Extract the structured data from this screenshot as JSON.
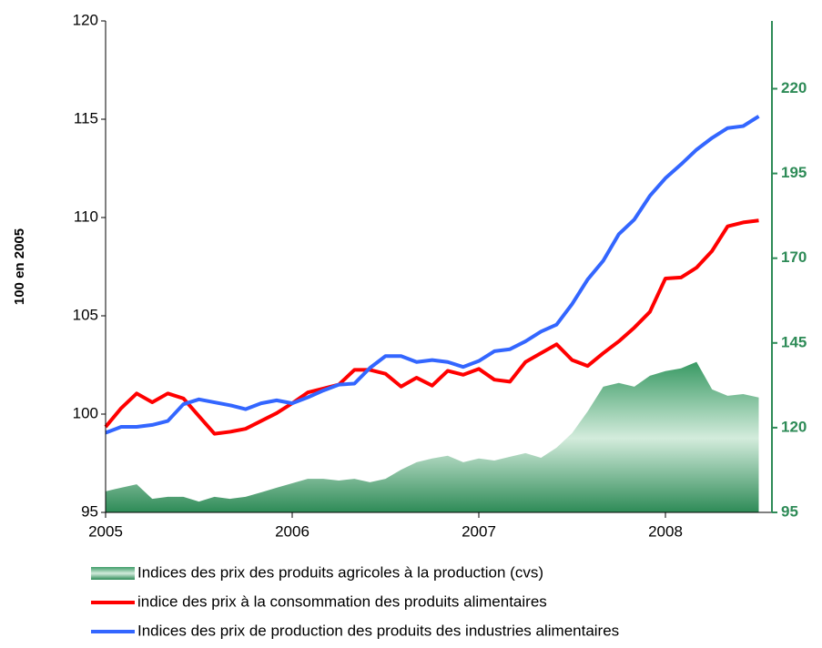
{
  "chart_data": {
    "type": "line",
    "y_label": "100 en 2005",
    "categories": [
      "2005",
      null,
      null,
      null,
      null,
      null,
      null,
      null,
      null,
      null,
      null,
      null,
      "2006",
      null,
      null,
      null,
      null,
      null,
      null,
      null,
      null,
      null,
      null,
      null,
      "2007",
      null,
      null,
      null,
      null,
      null,
      null,
      null,
      null,
      null,
      null,
      null,
      "2008",
      null,
      null,
      null,
      null,
      null,
      null
    ],
    "ylim": [
      95,
      120
    ],
    "yticks": [
      95,
      100,
      105,
      110,
      115,
      120
    ],
    "y2lim": [
      95,
      240
    ],
    "y2ticks": [
      95,
      120,
      145,
      170,
      195,
      220
    ],
    "y2_color": "#2e8b57",
    "legend": "bottom",
    "series": [
      {
        "name": "Indices des prix des produits agricoles à la production (cvs)",
        "type": "area",
        "axis": "y2",
        "color": "#2e8b57",
        "values": [
          101.2,
          102.3,
          103.3,
          99.0,
          99.6,
          99.6,
          98.2,
          99.6,
          99.0,
          99.6,
          100.9,
          102.3,
          103.6,
          104.9,
          104.9,
          104.4,
          104.9,
          103.9,
          104.9,
          107.6,
          109.8,
          110.9,
          111.7,
          109.8,
          110.9,
          110.3,
          111.4,
          112.5,
          111.1,
          114.1,
          118.4,
          124.8,
          132.1,
          133.2,
          132.1,
          135.3,
          136.7,
          137.5,
          139.4,
          131.3,
          129.4,
          129.9,
          128.9
        ]
      },
      {
        "name": "indice des prix à la consommation des produits alimentaires",
        "type": "line",
        "color": "#ff0000",
        "values": [
          99.35,
          100.3,
          101.05,
          100.6,
          101.05,
          100.8,
          99.9,
          99.0,
          99.1,
          99.25,
          99.65,
          100.05,
          100.55,
          101.1,
          101.3,
          101.5,
          102.25,
          102.25,
          102.05,
          101.4,
          101.85,
          101.45,
          102.2,
          102.0,
          102.3,
          101.75,
          101.65,
          102.65,
          103.1,
          103.55,
          102.75,
          102.45,
          103.1,
          103.7,
          104.4,
          105.2,
          106.9,
          106.95,
          107.45,
          108.3,
          109.55,
          109.75,
          109.85
        ]
      },
      {
        "name": "Indices des prix de production des produits des industries alimentaires",
        "type": "line",
        "color": "#3366ff",
        "values": [
          99.05,
          99.35,
          99.35,
          99.45,
          99.65,
          100.5,
          100.75,
          100.6,
          100.45,
          100.25,
          100.55,
          100.7,
          100.55,
          100.85,
          101.2,
          101.5,
          101.55,
          102.35,
          102.95,
          102.95,
          102.65,
          102.75,
          102.65,
          102.4,
          102.7,
          103.2,
          103.3,
          103.7,
          104.2,
          104.55,
          105.6,
          106.85,
          107.8,
          109.15,
          109.9,
          111.1,
          112.0,
          112.7,
          113.45,
          114.05,
          114.55,
          114.65,
          115.15
        ]
      }
    ]
  }
}
